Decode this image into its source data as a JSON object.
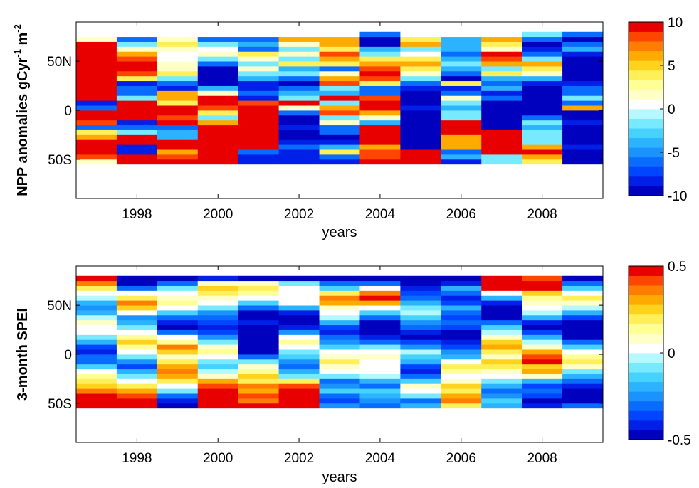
{
  "colorscale": {
    "colors": [
      "#0000bf",
      "#0020e8",
      "#0045ff",
      "#0a6cff",
      "#1b93ff",
      "#2cb3ff",
      "#45d2ff",
      "#78eaff",
      "#b6f8ff",
      "#ffffff",
      "#ffffc8",
      "#ffff96",
      "#fff05a",
      "#ffd21e",
      "#ffaa00",
      "#ff7d00",
      "#ff4600",
      "#e80000"
    ]
  },
  "chart_data": [
    {
      "type": "heatmap",
      "xlabel": "years",
      "ylabel": "NPP anomalies gCyr",
      "ylabel_sup1": "-1",
      "ylabel_mid": " m",
      "ylabel_sup2": "-2",
      "x_tick_labels": [
        "1998",
        "2000",
        "2002",
        "2004",
        "2006",
        "2008"
      ],
      "x_tick_values": [
        1998,
        2000,
        2002,
        2004,
        2006,
        2008
      ],
      "xlim": [
        1996.5,
        2009.5
      ],
      "y_tick_labels": [
        "50N",
        "0",
        "50S"
      ],
      "y_tick_values": [
        50,
        0,
        -50
      ],
      "ylim": [
        -90,
        90
      ],
      "data_lat_range": [
        -55,
        80
      ],
      "lat_band_deg": 5,
      "years": [
        1997,
        1998,
        1999,
        2000,
        2001,
        2002,
        2003,
        2004,
        2005,
        2006,
        2007,
        2008,
        2009
      ],
      "colorbar": {
        "min": -10,
        "max": 10,
        "tick_values": [
          10,
          5,
          0,
          -5,
          -10
        ],
        "tick_labels": [
          "10",
          "5",
          "0",
          "-5",
          "-10"
        ]
      },
      "values": [
        [
          2,
          8,
          10,
          10,
          10,
          6,
          4,
          -6,
          8,
          10,
          10,
          -6,
          -8,
          10,
          10,
          10,
          10,
          10,
          10,
          10,
          10,
          10,
          10,
          10,
          10,
          2,
          0
        ],
        [
          10,
          10,
          -8,
          -8,
          10,
          10,
          -2,
          -6,
          -8,
          10,
          10,
          10,
          10,
          -2,
          -6,
          -6,
          -8,
          4,
          8,
          10,
          10,
          8,
          6,
          2,
          -2,
          -6,
          0
        ],
        [
          10,
          8,
          6,
          10,
          10,
          -4,
          -4,
          -6,
          10,
          8,
          10,
          10,
          4,
          6,
          6,
          -8,
          -6,
          -2,
          4,
          2,
          2,
          0,
          0,
          2,
          4,
          2,
          0
        ],
        [
          10,
          10,
          10,
          10,
          10,
          10,
          10,
          10,
          6,
          -2,
          4,
          8,
          10,
          10,
          2,
          -4,
          -10,
          -10,
          -10,
          -10,
          -6,
          -2,
          2,
          0,
          -2,
          -6,
          0
        ],
        [
          -8,
          -8,
          -6,
          10,
          10,
          10,
          10,
          10,
          10,
          10,
          10,
          10,
          8,
          -8,
          -6,
          -8,
          -8,
          -4,
          -2,
          2,
          -2,
          2,
          4,
          -6,
          -4,
          -6,
          0
        ],
        [
          -8,
          -8,
          -8,
          -6,
          -8,
          -10,
          -10,
          -8,
          -10,
          -10,
          -6,
          2,
          10,
          -2,
          -4,
          -6,
          -10,
          -6,
          -2,
          -4,
          4,
          -2,
          2,
          -2,
          2,
          6,
          0
        ],
        [
          -8,
          -6,
          4,
          -4,
          -8,
          -10,
          -6,
          -6,
          2,
          -2,
          8,
          6,
          -2,
          10,
          -4,
          -2,
          8,
          6,
          2,
          -6,
          4,
          6,
          8,
          4,
          6,
          6,
          0
        ],
        [
          10,
          8,
          8,
          6,
          10,
          10,
          10,
          10,
          -4,
          2,
          6,
          10,
          10,
          8,
          -6,
          -6,
          4,
          8,
          10,
          8,
          6,
          4,
          -2,
          -4,
          -10,
          -10,
          -6
        ],
        [
          10,
          10,
          10,
          -10,
          -10,
          -10,
          -10,
          -10,
          -10,
          -10,
          -10,
          -8,
          -10,
          -10,
          -10,
          -8,
          -6,
          -2,
          2,
          4,
          6,
          4,
          0,
          -2,
          6,
          4,
          0
        ],
        [
          -8,
          -4,
          -6,
          6,
          6,
          6,
          10,
          10,
          10,
          -2,
          -2,
          -4,
          -2,
          2,
          -6,
          -8,
          4,
          -10,
          -6,
          -4,
          -2,
          -4,
          -6,
          -4,
          -4,
          -4,
          0
        ],
        [
          -2,
          -2,
          10,
          10,
          10,
          10,
          10,
          -10,
          -10,
          -10,
          -10,
          -10,
          -10,
          -6,
          -8,
          -4,
          -6,
          -4,
          4,
          -2,
          6,
          8,
          10,
          2,
          4,
          6,
          0
        ],
        [
          4,
          6,
          10,
          6,
          -2,
          -2,
          -2,
          -4,
          -2,
          -6,
          -10,
          -10,
          -10,
          -10,
          -10,
          -10,
          -8,
          -4,
          2,
          4,
          6,
          -2,
          -6,
          -8,
          -10,
          -6,
          -2
        ],
        [
          -10,
          -10,
          -10,
          -8,
          -10,
          -10,
          -10,
          -10,
          -8,
          -10,
          -10,
          6,
          -6,
          -2,
          -6,
          -6,
          -8,
          -10,
          -10,
          -10,
          -10,
          -10,
          -8,
          -4,
          -6,
          -10,
          -6
        ]
      ]
    },
    {
      "type": "heatmap",
      "xlabel": "years",
      "ylabel": "3-month SPEI",
      "x_tick_labels": [
        "1998",
        "2000",
        "2002",
        "2004",
        "2006",
        "2008"
      ],
      "x_tick_values": [
        1998,
        2000,
        2002,
        2004,
        2006,
        2008
      ],
      "xlim": [
        1996.5,
        2009.5
      ],
      "y_tick_labels": [
        "50N",
        "0",
        "50S"
      ],
      "y_tick_values": [
        50,
        0,
        -50
      ],
      "ylim": [
        -90,
        90
      ],
      "data_lat_range": [
        -55,
        80
      ],
      "lat_band_deg": 5,
      "years": [
        1997,
        1998,
        1999,
        2000,
        2001,
        2002,
        2003,
        2004,
        2005,
        2006,
        2007,
        2008,
        2009
      ],
      "colorbar": {
        "min": -0.5,
        "max": 0.5,
        "tick_values": [
          0.5,
          0,
          -0.5
        ],
        "tick_labels": [
          "0.5",
          "0",
          "-0.5"
        ]
      },
      "values": [
        [
          0.5,
          0.5,
          0.45,
          0.35,
          0.25,
          0.2,
          0.15,
          0.05,
          -0.15,
          -0.3,
          -0.3,
          -0.4,
          -0.35,
          -0.2,
          -0.1,
          0,
          0.05,
          0.1,
          -0.05,
          -0.2,
          -0.25,
          -0.2,
          -0.05,
          0,
          0.2,
          0.35,
          0.45
        ],
        [
          0.5,
          0.45,
          0.4,
          0.3,
          0.2,
          0.05,
          -0.1,
          -0.2,
          -0.35,
          -0.25,
          -0.1,
          0.05,
          0.15,
          0.25,
          0.15,
          0,
          -0.1,
          -0.2,
          -0.25,
          0.05,
          0.25,
          0.35,
          0.2,
          0,
          -0.3,
          -0.45,
          -0.5
        ],
        [
          -0.45,
          -0.4,
          -0.3,
          -0.1,
          0.05,
          0.2,
          0.3,
          0.35,
          0.3,
          0.2,
          0.1,
          0.25,
          0.35,
          0.15,
          0,
          -0.3,
          -0.45,
          -0.4,
          -0.3,
          -0.15,
          0.05,
          0.15,
          0.1,
          0,
          -0.1,
          -0.3,
          -0.45
        ],
        [
          0.5,
          0.45,
          0.5,
          0.45,
          0.4,
          0.3,
          0.1,
          -0.05,
          -0.15,
          -0.1,
          0.05,
          0.15,
          0.1,
          -0.1,
          -0.25,
          -0.35,
          -0.4,
          -0.35,
          -0.3,
          -0.25,
          -0.1,
          0,
          0.1,
          0.2,
          0.25,
          0.1,
          -0.4
        ],
        [
          0.45,
          0.35,
          0.4,
          0.3,
          0.35,
          0.2,
          0.25,
          0.15,
          0.1,
          -0.1,
          -0.3,
          -0.45,
          -0.5,
          -0.5,
          -0.45,
          -0.5,
          -0.45,
          -0.4,
          -0.5,
          -0.45,
          -0.3,
          -0.15,
          0,
          0.15,
          0.2,
          0.1,
          -0.45
        ],
        [
          0.5,
          0.45,
          0.5,
          0.45,
          0.4,
          0.2,
          -0.1,
          -0.2,
          -0.3,
          -0.25,
          -0.15,
          -0.1,
          0.05,
          0.15,
          0.05,
          -0.25,
          -0.4,
          -0.45,
          -0.45,
          -0.4,
          -0.2,
          0,
          0,
          0,
          0,
          -0.1,
          -0.5
        ],
        [
          -0.25,
          -0.35,
          -0.3,
          -0.15,
          -0.25,
          -0.3,
          -0.1,
          0,
          0.1,
          0.2,
          0.1,
          0,
          -0.15,
          -0.25,
          -0.3,
          -0.4,
          -0.35,
          -0.2,
          -0.05,
          0,
          0.1,
          0.3,
          0.35,
          0.2,
          -0.15,
          -0.3,
          -0.5
        ],
        [
          -0.3,
          -0.25,
          -0.2,
          -0.15,
          -0.3,
          -0.2,
          -0.05,
          0,
          0,
          0.05,
          0.1,
          0.05,
          -0.1,
          -0.3,
          -0.4,
          -0.5,
          -0.5,
          -0.45,
          -0.3,
          -0.15,
          0,
          0.3,
          0.45,
          0.35,
          0.05,
          -0.3,
          -0.5
        ],
        [
          -0.2,
          -0.3,
          -0.1,
          0,
          0.1,
          -0.15,
          -0.3,
          -0.4,
          -0.35,
          -0.2,
          -0.15,
          -0.05,
          -0.25,
          -0.35,
          -0.45,
          -0.4,
          -0.3,
          -0.25,
          -0.15,
          -0.05,
          -0.1,
          -0.2,
          -0.3,
          -0.35,
          -0.4,
          -0.45,
          -0.5
        ],
        [
          0.2,
          0.35,
          0.3,
          0.2,
          0.25,
          0.1,
          0.05,
          0.15,
          0.2,
          0,
          -0.2,
          -0.25,
          -0.35,
          -0.4,
          -0.45,
          -0.45,
          -0.35,
          -0.3,
          -0.35,
          -0.3,
          -0.2,
          -0.35,
          -0.4,
          -0.3,
          -0.2,
          -0.4,
          -0.5
        ],
        [
          -0.2,
          -0.15,
          -0.25,
          -0.3,
          -0.2,
          -0.1,
          0,
          0.1,
          0.2,
          0.25,
          0.1,
          0.2,
          0.3,
          0.25,
          0.1,
          -0.05,
          -0.15,
          -0.3,
          -0.45,
          -0.5,
          -0.45,
          -0.4,
          -0.2,
          0,
          0.45,
          0.5,
          0.45
        ],
        [
          -0.4,
          -0.45,
          -0.35,
          -0.3,
          -0.35,
          -0.2,
          0.1,
          0.3,
          0.25,
          0.45,
          0.4,
          0.3,
          0.1,
          -0.05,
          -0.2,
          -0.35,
          -0.45,
          -0.4,
          -0.2,
          -0.05,
          0,
          0.1,
          0.15,
          0.25,
          0.45,
          0.5,
          0.4
        ],
        [
          -0.3,
          -0.45,
          -0.5,
          -0.45,
          -0.4,
          -0.3,
          -0.2,
          -0.1,
          0.1,
          0.2,
          0.15,
          0.05,
          -0.15,
          -0.3,
          -0.45,
          -0.5,
          -0.5,
          -0.45,
          -0.35,
          -0.2,
          -0.05,
          0.1,
          0.2,
          0.05,
          -0.15,
          -0.3,
          -0.45
        ]
      ]
    }
  ]
}
